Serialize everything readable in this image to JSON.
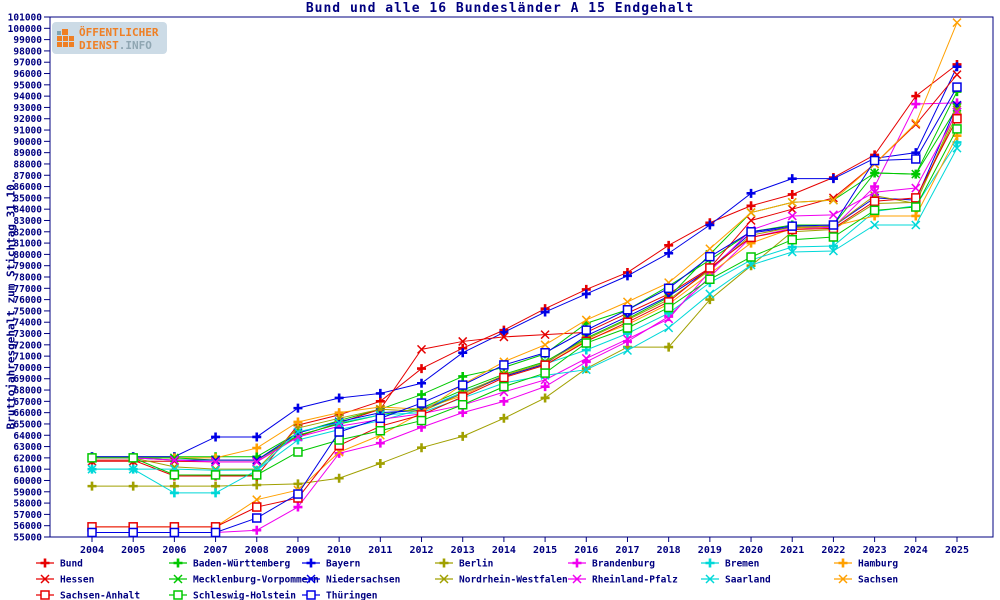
{
  "title": "Bund und alle 16 Bundesländer A 15 Endgehalt",
  "logo": {
    "line1": "ÖFFENTLICHER",
    "line2_main": "DIENST",
    "line2_suffix": ".INFO"
  },
  "colors": {
    "axis": "#000080",
    "background": "#ffffff",
    "red": "#e60000",
    "green": "#00c800",
    "blue": "#0000e6",
    "olive": "#a0a000",
    "magenta": "#f000f0",
    "cyan": "#00d8d8",
    "orange": "#ffa000"
  },
  "chart_data": {
    "type": "line",
    "title": "Bund und alle 16 Bundesländer A 15 Endgehalt",
    "ylabel": "Bruttojahresgehalt zum Stichtag 31.10.",
    "xlabel": "",
    "ylim": [
      55000,
      101000
    ],
    "ytick_step": 1000,
    "grid": false,
    "legend_position": "bottom",
    "x": [
      2004,
      2005,
      2006,
      2007,
      2008,
      2009,
      2010,
      2011,
      2012,
      2013,
      2014,
      2015,
      2016,
      2017,
      2018,
      2019,
      2020,
      2021,
      2022,
      2023,
      2024,
      2025
    ],
    "series": [
      {
        "name": "Bund",
        "color": "#e60000",
        "marker": "plus",
        "values": [
          61800,
          61800,
          60400,
          60400,
          60400,
          64900,
          65800,
          67000,
          69900,
          71700,
          73300,
          75200,
          76900,
          78400,
          80800,
          82800,
          84300,
          85300,
          86800,
          88800,
          94000,
          96800
        ]
      },
      {
        "name": "Baden-Württemberg",
        "color": "#00c800",
        "marker": "plus",
        "values": [
          62100,
          62100,
          62100,
          62100,
          62100,
          64200,
          65300,
          66300,
          67600,
          69200,
          70000,
          71200,
          73900,
          75100,
          77200,
          79500,
          82000,
          82600,
          82600,
          87200,
          87100,
          94400
        ]
      },
      {
        "name": "Bayern",
        "color": "#0000e6",
        "marker": "plus",
        "values": [
          62100,
          62100,
          62100,
          63850,
          63850,
          66400,
          67300,
          67700,
          68600,
          71300,
          73100,
          74900,
          76500,
          78100,
          80100,
          82600,
          85400,
          86700,
          86700,
          88500,
          89000,
          96600
        ]
      },
      {
        "name": "Berlin",
        "color": "#a0a000",
        "marker": "plus",
        "values": [
          59500,
          59500,
          59500,
          59500,
          59600,
          59700,
          60200,
          61500,
          62900,
          63900,
          65500,
          67300,
          69900,
          71800,
          71800,
          76000,
          79000,
          82000,
          82200,
          84500,
          84600,
          92400
        ]
      },
      {
        "name": "Brandenburg",
        "color": "#f000f0",
        "marker": "plus",
        "values": [
          55400,
          55400,
          55400,
          55400,
          55600,
          57650,
          62400,
          63300,
          64700,
          66000,
          67000,
          68300,
          70500,
          72300,
          74500,
          78000,
          81500,
          82300,
          82400,
          86000,
          93300,
          93400
        ]
      },
      {
        "name": "Bremen",
        "color": "#00d8d8",
        "marker": "plus",
        "values": [
          61000,
          61000,
          58900,
          58900,
          60900,
          63580,
          64500,
          65300,
          66300,
          67800,
          69200,
          70300,
          71540,
          73000,
          74800,
          77500,
          79500,
          80650,
          80740,
          83800,
          84300,
          89900
        ]
      },
      {
        "name": "Hamburg",
        "color": "#ffa000",
        "marker": "plus",
        "values": [
          62000,
          62000,
          62000,
          62000,
          62870,
          65175,
          66000,
          66500,
          66300,
          67500,
          69300,
          70200,
          72400,
          73800,
          75600,
          78300,
          81000,
          82300,
          82500,
          83400,
          83400,
          90500
        ]
      },
      {
        "name": "Hessen",
        "color": "#e60000",
        "marker": "cross",
        "values": [
          61700,
          61700,
          61700,
          61650,
          61650,
          63900,
          65100,
          66300,
          71600,
          72300,
          72700,
          72900,
          73100,
          74800,
          76500,
          78800,
          83000,
          84000,
          85000,
          88000,
          91500,
          95900
        ]
      },
      {
        "name": "Mecklenburg-Vorpommern",
        "color": "#00c800",
        "marker": "cross",
        "values": [
          62000,
          62000,
          62000,
          61800,
          61800,
          64000,
          65000,
          65800,
          66400,
          68000,
          69400,
          70500,
          72600,
          74300,
          76200,
          80000,
          83700,
          84600,
          84800,
          87200,
          87100,
          93000
        ]
      },
      {
        "name": "Niedersachsen",
        "color": "#0000e6",
        "marker": "cross",
        "values": [
          62000,
          62000,
          61800,
          61800,
          61800,
          64200,
          65200,
          66000,
          66200,
          67700,
          69200,
          70300,
          72800,
          74500,
          76300,
          78700,
          81900,
          82400,
          82500,
          85000,
          84800,
          93200
        ]
      },
      {
        "name": "Nordrhein-Westfalen",
        "color": "#a0a000",
        "marker": "cross",
        "values": [
          62000,
          62000,
          61200,
          61000,
          61000,
          64640,
          65500,
          66300,
          66100,
          67700,
          69300,
          70400,
          72500,
          74200,
          76000,
          78600,
          81700,
          82400,
          82500,
          85200,
          84500,
          92800
        ]
      },
      {
        "name": "Rheinland-Pfalz",
        "color": "#f000f0",
        "marker": "cross",
        "values": [
          62000,
          62000,
          61800,
          61640,
          61640,
          63850,
          64800,
          65400,
          65900,
          66670,
          67830,
          68900,
          70800,
          72500,
          74300,
          78500,
          82160,
          83400,
          83500,
          85500,
          85870,
          92600
        ]
      },
      {
        "name": "Saarland",
        "color": "#00d8d8",
        "marker": "cross",
        "values": [
          61000,
          61000,
          61000,
          60900,
          60930,
          64300,
          65100,
          65800,
          66000,
          67300,
          68620,
          69300,
          69800,
          71500,
          73500,
          76500,
          79060,
          80210,
          80300,
          82600,
          82600,
          89400
        ]
      },
      {
        "name": "Sachsen",
        "color": "#ffa000",
        "marker": "cross",
        "values": [
          55900,
          55900,
          55900,
          55900,
          58300,
          59150,
          62500,
          64000,
          66000,
          68500,
          70500,
          72000,
          74200,
          75800,
          77500,
          80500,
          83700,
          84600,
          84800,
          88000,
          91600,
          100500
        ]
      },
      {
        "name": "Sachsen-Anhalt",
        "color": "#e60000",
        "marker": "square",
        "values": [
          55900,
          55900,
          55900,
          55900,
          57650,
          58450,
          63100,
          64800,
          65800,
          67400,
          69100,
          70200,
          72300,
          74000,
          75800,
          78800,
          81500,
          82200,
          82300,
          84700,
          85000,
          92000
        ]
      },
      {
        "name": "Schleswig-Holstein",
        "color": "#00c800",
        "marker": "square",
        "values": [
          62000,
          62000,
          60500,
          60490,
          60490,
          62520,
          63580,
          64400,
          65300,
          66700,
          68300,
          69500,
          72160,
          73490,
          75300,
          77800,
          79770,
          81300,
          81540,
          83900,
          84190,
          91100
        ]
      },
      {
        "name": "Thüringen",
        "color": "#0000e6",
        "marker": "square",
        "values": [
          55400,
          55400,
          55400,
          55400,
          56680,
          58800,
          64290,
          65500,
          66850,
          68440,
          70220,
          71300,
          73300,
          75100,
          77000,
          79800,
          82000,
          82500,
          82600,
          88300,
          88440,
          94800
        ]
      }
    ]
  }
}
